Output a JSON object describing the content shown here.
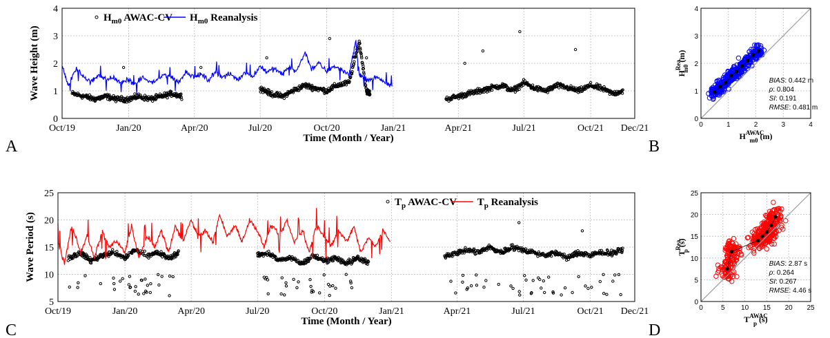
{
  "panels": {
    "A": "A",
    "B": "B",
    "C": "C",
    "D": "D"
  },
  "chart_data": [
    {
      "id": "A",
      "type": "line",
      "xlabel": "Time (Month / Year)",
      "ylabel": "Wave Height (m)",
      "ylim": [
        0,
        4
      ],
      "yticks": [
        "0",
        "1",
        "2",
        "3",
        "4"
      ],
      "xticks": [
        "Oct/19",
        "Jan/20",
        "Apr/20",
        "Jul/20",
        "Oct/20",
        "Jan/21",
        "Apr/21",
        "Jul/21",
        "Oct/21",
        "Dec/21"
      ],
      "grid": true,
      "legend": {
        "position": "top-left",
        "items": [
          {
            "base": "H",
            "sub": "m0",
            "text": " AWAC-CV",
            "marker": "circle",
            "color": "#000000"
          },
          {
            "base": "H",
            "sub": "m0",
            "text": " Reanalysis",
            "marker": "line",
            "color": "#0000ff"
          }
        ]
      },
      "series": [
        {
          "name": "Hm0 AWAC-CV",
          "kind": "scatter",
          "color": "#000000",
          "x": [
            "2019-10-15",
            "2019-11-01",
            "2019-11-15",
            "2019-12-01",
            "2019-12-15",
            "2020-01-01",
            "2020-01-15",
            "2020-02-01",
            "2020-02-15",
            "2020-03-01",
            "2020-03-15",
            "2020-07-01",
            "2020-07-15",
            "2020-08-01",
            "2020-08-15",
            "2020-09-01",
            "2020-09-15",
            "2020-10-01",
            "2020-10-15",
            "2020-11-01",
            "2020-11-15",
            "2020-11-25",
            "2020-11-30",
            "2021-03-15",
            "2021-04-01",
            "2021-04-15",
            "2021-05-01",
            "2021-05-15",
            "2021-06-01",
            "2021-06-15",
            "2021-07-01",
            "2021-07-15",
            "2021-08-01",
            "2021-08-15",
            "2021-09-01",
            "2021-09-15",
            "2021-10-01",
            "2021-10-15",
            "2021-11-01",
            "2021-11-15"
          ],
          "y": [
            0.9,
            0.8,
            0.7,
            0.8,
            0.7,
            0.7,
            0.8,
            0.7,
            0.8,
            0.9,
            0.8,
            1.1,
            0.9,
            0.8,
            1.0,
            1.2,
            1.1,
            1.0,
            1.2,
            1.3,
            2.8,
            1.0,
            0.9,
            0.7,
            0.8,
            0.9,
            1.0,
            1.1,
            1.2,
            1.0,
            1.3,
            1.1,
            1.0,
            1.2,
            1.1,
            1.0,
            1.2,
            1.1,
            0.9,
            1.0
          ]
        },
        {
          "name": "Hm0 Reanalysis",
          "kind": "line",
          "color": "#0000ff",
          "x": [
            "2019-10-01",
            "2019-10-10",
            "2019-10-20",
            "2019-11-01",
            "2019-11-10",
            "2019-11-20",
            "2019-12-01",
            "2019-12-10",
            "2019-12-20",
            "2020-01-01",
            "2020-01-10",
            "2020-01-20",
            "2020-02-01",
            "2020-02-10",
            "2020-02-20",
            "2020-03-01",
            "2020-03-10",
            "2020-03-20",
            "2020-04-01",
            "2020-04-10",
            "2020-04-20",
            "2020-05-01",
            "2020-05-10",
            "2020-05-20",
            "2020-06-01",
            "2020-06-10",
            "2020-06-20",
            "2020-07-01",
            "2020-07-10",
            "2020-07-20",
            "2020-08-01",
            "2020-08-10",
            "2020-08-20",
            "2020-09-01",
            "2020-09-10",
            "2020-09-20",
            "2020-10-01",
            "2020-10-10",
            "2020-10-20",
            "2020-11-01",
            "2020-11-10",
            "2020-11-15",
            "2020-11-20",
            "2020-12-01",
            "2020-12-10",
            "2020-12-20",
            "2020-12-31"
          ],
          "y": [
            1.9,
            1.2,
            1.8,
            1.5,
            1.3,
            1.6,
            1.4,
            1.5,
            1.3,
            1.4,
            1.2,
            1.5,
            1.3,
            1.4,
            1.6,
            1.5,
            1.3,
            1.7,
            1.5,
            1.6,
            1.4,
            1.7,
            1.5,
            1.6,
            1.4,
            1.7,
            1.5,
            1.9,
            1.7,
            1.8,
            1.6,
            1.9,
            1.7,
            2.4,
            1.8,
            2.0,
            1.7,
            1.9,
            1.8,
            1.6,
            2.8,
            1.6,
            1.5,
            1.4,
            1.5,
            1.3,
            1.2
          ]
        }
      ],
      "outliers": [
        {
          "x": "2019-12-25",
          "y": 1.85
        },
        {
          "x": "2020-04-10",
          "y": 1.85
        },
        {
          "x": "2020-07-10",
          "y": 2.2
        },
        {
          "x": "2020-10-05",
          "y": 2.9
        },
        {
          "x": "2020-11-25",
          "y": 2.2
        },
        {
          "x": "2021-04-10",
          "y": 2.0
        },
        {
          "x": "2021-05-05",
          "y": 2.45
        },
        {
          "x": "2021-06-25",
          "y": 3.15
        },
        {
          "x": "2021-09-10",
          "y": 2.5
        }
      ]
    },
    {
      "id": "B",
      "type": "scatter",
      "xlim": [
        0,
        4
      ],
      "ylim": [
        0,
        4
      ],
      "xticks": [
        "0",
        "1",
        "2",
        "3",
        "4"
      ],
      "yticks": [
        "0",
        "1",
        "2",
        "3",
        "4"
      ],
      "xlabel": {
        "base": "H",
        "sub": "m0",
        "sup": "AWAC",
        "unit": " (m)"
      },
      "ylabel": {
        "base": "H",
        "sub": "m0",
        "sup": "Rea.",
        "unit": " (m)"
      },
      "grid": true,
      "reference_line": "y=x",
      "points_color": "#0000ff",
      "binned_means": {
        "x": [
          0.5,
          0.7,
          0.9,
          1.1,
          1.3,
          1.5,
          1.7,
          1.9,
          2.1
        ],
        "y": [
          0.95,
          1.15,
          1.3,
          1.55,
          1.7,
          1.9,
          2.1,
          2.3,
          2.45
        ]
      },
      "cloud": {
        "center_x": [
          0.6,
          1.9
        ],
        "spread": 0.25
      },
      "stats": [
        {
          "label": "BIAS",
          "value": ": 0.442 m"
        },
        {
          "label": "ρ",
          "value": ": 0.804"
        },
        {
          "label": "SI",
          "value": ": 0.191"
        },
        {
          "label": "RMSE",
          "value": ": 0.481 m"
        }
      ]
    },
    {
      "id": "C",
      "type": "line",
      "xlabel": "Time (Month / Year)",
      "ylabel": "Wave Period (s)",
      "ylim": [
        5,
        25
      ],
      "yticks": [
        "5",
        "10",
        "15",
        "20",
        "25"
      ],
      "xticks": [
        "Oct/19",
        "Jan/20",
        "Apr/20",
        "Jul/20",
        "Oct/20",
        "Jan/21",
        "Apr/21",
        "Jul/21",
        "Oct/21",
        "Dec/21"
      ],
      "grid": true,
      "legend": {
        "position": "top-right",
        "items": [
          {
            "base": "T",
            "sub": "p",
            "text": " AWAC-CV",
            "marker": "circle",
            "color": "#000000"
          },
          {
            "base": "T",
            "sub": "p",
            "text": " Reanalysis",
            "marker": "line",
            "color": "#ff0000"
          }
        ]
      },
      "series": [
        {
          "name": "Tp AWAC-CV",
          "kind": "scatter",
          "color": "#000000",
          "x": [
            "2019-10-15",
            "2019-11-01",
            "2019-11-15",
            "2019-12-01",
            "2019-12-15",
            "2020-01-01",
            "2020-01-15",
            "2020-02-01",
            "2020-02-15",
            "2020-03-01",
            "2020-03-15",
            "2020-07-01",
            "2020-07-15",
            "2020-08-01",
            "2020-08-15",
            "2020-09-01",
            "2020-09-15",
            "2020-10-01",
            "2020-10-15",
            "2020-11-01",
            "2020-11-15",
            "2020-12-01",
            "2021-03-15",
            "2021-04-01",
            "2021-04-15",
            "2021-05-01",
            "2021-05-15",
            "2021-06-01",
            "2021-06-15",
            "2021-07-01",
            "2021-07-15",
            "2021-08-01",
            "2021-08-15",
            "2021-09-01",
            "2021-09-15",
            "2021-10-01",
            "2021-10-15",
            "2021-11-01",
            "2021-11-15"
          ],
          "y": [
            13,
            14,
            12.5,
            13.5,
            14,
            13,
            14.5,
            13.5,
            14,
            13,
            14,
            13.5,
            14,
            12.5,
            13,
            12,
            13.5,
            12.5,
            13,
            12,
            13,
            12,
            13.5,
            14,
            14.5,
            14,
            15,
            14,
            15,
            14.5,
            14,
            13.5,
            14,
            13,
            14,
            13.5,
            14,
            14,
            14.5
          ]
        },
        {
          "name": "Tp Reanalysis",
          "kind": "line",
          "color": "#ff0000",
          "x": [
            "2019-10-01",
            "2019-10-10",
            "2019-10-20",
            "2019-11-01",
            "2019-11-10",
            "2019-11-20",
            "2019-12-01",
            "2019-12-10",
            "2019-12-20",
            "2020-01-01",
            "2020-01-10",
            "2020-01-20",
            "2020-02-01",
            "2020-02-10",
            "2020-02-20",
            "2020-03-01",
            "2020-03-10",
            "2020-03-20",
            "2020-04-01",
            "2020-04-10",
            "2020-04-20",
            "2020-05-01",
            "2020-05-10",
            "2020-05-20",
            "2020-06-01",
            "2020-06-10",
            "2020-06-20",
            "2020-07-01",
            "2020-07-10",
            "2020-07-20",
            "2020-08-01",
            "2020-08-10",
            "2020-08-20",
            "2020-09-01",
            "2020-09-10",
            "2020-09-20",
            "2020-10-01",
            "2020-10-10",
            "2020-10-20",
            "2020-11-01",
            "2020-11-10",
            "2020-11-20",
            "2020-12-01",
            "2020-12-10",
            "2020-12-20",
            "2020-12-31"
          ],
          "y": [
            16,
            12,
            19,
            14,
            17,
            13,
            18,
            15,
            16,
            14,
            19,
            13,
            17,
            15,
            18,
            14,
            19,
            16,
            20,
            17,
            18,
            16,
            21,
            17,
            19,
            16,
            20,
            18,
            15,
            19,
            17,
            20,
            16,
            18,
            14,
            19,
            17,
            15,
            18,
            16,
            19,
            14,
            17,
            15,
            18,
            16
          ]
        }
      ],
      "outliers": [
        {
          "x": "2021-06-25",
          "y": 19.5
        },
        {
          "x": "2021-09-20",
          "y": 18
        }
      ]
    },
    {
      "id": "D",
      "type": "scatter",
      "xlim": [
        0,
        25
      ],
      "ylim": [
        0,
        25
      ],
      "xticks": [
        "0",
        "5",
        "10",
        "15",
        "20",
        "25"
      ],
      "yticks": [
        "0",
        "5",
        "10",
        "15",
        "20",
        "25"
      ],
      "xlabel": {
        "base": "T",
        "sub": "p",
        "sup": "AWAC",
        "unit": " (s)"
      },
      "ylabel": {
        "base": "T",
        "sub": "p",
        "sup": "Rea.",
        "unit": " (s)"
      },
      "grid": true,
      "reference_line": "y=x",
      "points_color": "#ff0000",
      "binned_means": {
        "x": [
          6,
          7,
          13,
          14,
          15,
          16,
          17
        ],
        "y": [
          7.5,
          11.5,
          14,
          15,
          16,
          17.5,
          19.5
        ]
      },
      "cloud": {
        "center_x": [
          6,
          17
        ],
        "spread": 3
      },
      "stats": [
        {
          "label": "BIAS",
          "value": ": 2.87 s"
        },
        {
          "label": "ρ",
          "value": ": 0.264"
        },
        {
          "label": "SI",
          "value": ": 0.267"
        },
        {
          "label": "RMSE",
          "value": ": 4.46 s"
        }
      ]
    }
  ]
}
